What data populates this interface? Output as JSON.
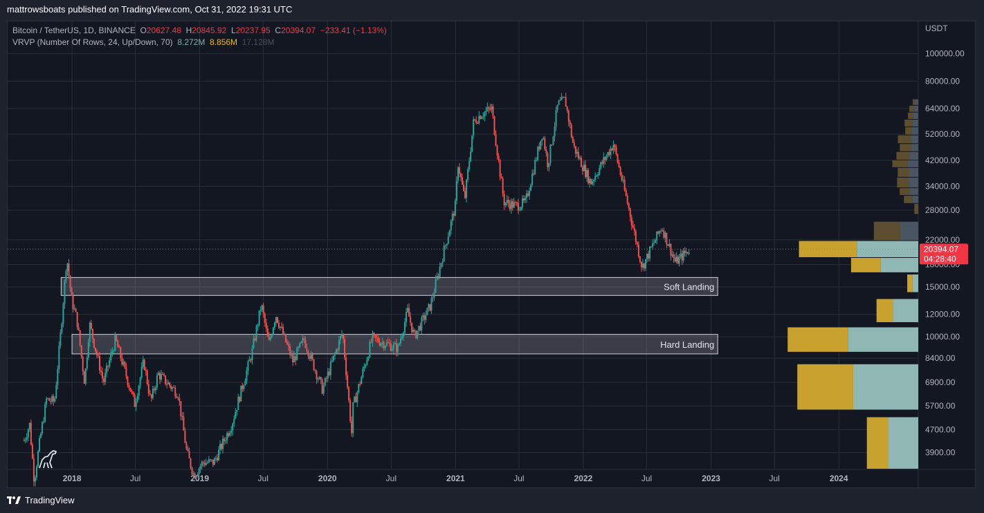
{
  "header": {
    "publisher": "mattrowsboats published on TradingView.com, Oct 31, 2022 19:31 UTC"
  },
  "legend": {
    "symbol": "Bitcoin / TetherUS, 1D, BINANCE",
    "open_label": "O",
    "open": "20627.48",
    "high_label": "H",
    "high": "20845.92",
    "low_label": "L",
    "low": "20237.95",
    "close_label": "C",
    "close": "20394.07",
    "change": "−233.41 (−1.13%)",
    "indicator": "VRVP (Number Of Rows, 24, Up/Down, 70)",
    "vol_up": "8.272M",
    "vol_down": "8.856M",
    "vol_total": "17.128M"
  },
  "footer": {
    "brand": "TradingView"
  },
  "colors": {
    "background": "#131722",
    "grid": "#2a2e39",
    "up": "#26a69a",
    "down": "#ef5350",
    "vp_up": "#8fb8b4",
    "vp_down": "#c9a12f",
    "vp_up_faded": "#4a5563",
    "vp_down_faded": "#5c4e2e",
    "price_line": "#ef5350",
    "price_label": "#f23645"
  },
  "chart_data": {
    "type": "candlestick",
    "symbol": "BTCUSDT",
    "timeframe": "1D",
    "y_scale": "log",
    "currency_label": "USDT",
    "y_range": [
      3400,
      130000
    ],
    "x_range": [
      "2017-07-01",
      "2024-08-15"
    ],
    "y_ticks": [
      "100000.00",
      "80000.00",
      "64000.00",
      "52000.00",
      "42000.00",
      "34000.00",
      "28000.00",
      "22000.00",
      "18000.00",
      "15000.00",
      "12000.00",
      "10000.00",
      "8400.00",
      "6900.00",
      "5700.00",
      "4700.00",
      "3900.00"
    ],
    "x_ticks": [
      {
        "label": "2018",
        "date": "2018-01-01",
        "bold": true
      },
      {
        "label": "Jul",
        "date": "2018-07-01"
      },
      {
        "label": "2019",
        "date": "2019-01-01",
        "bold": true
      },
      {
        "label": "Jul",
        "date": "2019-07-01"
      },
      {
        "label": "2020",
        "date": "2020-01-01",
        "bold": true
      },
      {
        "label": "Jul",
        "date": "2020-07-01"
      },
      {
        "label": "2021",
        "date": "2021-01-01",
        "bold": true
      },
      {
        "label": "Jul",
        "date": "2021-07-01"
      },
      {
        "label": "2022",
        "date": "2022-01-01",
        "bold": true
      },
      {
        "label": "Jul",
        "date": "2022-07-01"
      },
      {
        "label": "2023",
        "date": "2023-01-01",
        "bold": true
      },
      {
        "label": "Jul",
        "date": "2023-07-01"
      },
      {
        "label": "2024",
        "date": "2024-01-01",
        "bold": true
      }
    ],
    "price_path": [
      [
        "2017-08-17",
        4300
      ],
      [
        "2017-09-02",
        4900
      ],
      [
        "2017-09-15",
        3100
      ],
      [
        "2017-10-01",
        4300
      ],
      [
        "2017-10-20",
        6000
      ],
      [
        "2017-11-12",
        5900
      ],
      [
        "2017-12-01",
        10800
      ],
      [
        "2017-12-17",
        19200
      ],
      [
        "2017-12-31",
        13500
      ],
      [
        "2018-01-15",
        11500
      ],
      [
        "2018-02-06",
        6900
      ],
      [
        "2018-02-20",
        11100
      ],
      [
        "2018-04-01",
        6900
      ],
      [
        "2018-05-05",
        9800
      ],
      [
        "2018-06-29",
        5800
      ],
      [
        "2018-07-25",
        8200
      ],
      [
        "2018-08-14",
        5900
      ],
      [
        "2018-09-04",
        7400
      ],
      [
        "2018-10-31",
        6300
      ],
      [
        "2018-11-25",
        3900
      ],
      [
        "2018-12-15",
        3250
      ],
      [
        "2019-01-10",
        3600
      ],
      [
        "2019-02-10",
        3600
      ],
      [
        "2019-04-02",
        4900
      ],
      [
        "2019-05-30",
        8800
      ],
      [
        "2019-06-26",
        13000
      ],
      [
        "2019-07-17",
        9400
      ],
      [
        "2019-08-06",
        12000
      ],
      [
        "2019-09-24",
        8200
      ],
      [
        "2019-10-26",
        9800
      ],
      [
        "2019-12-18",
        6500
      ],
      [
        "2020-02-13",
        10400
      ],
      [
        "2020-03-12",
        4300
      ],
      [
        "2020-03-13",
        5600
      ],
      [
        "2020-05-08",
        9900
      ],
      [
        "2020-07-20",
        9100
      ],
      [
        "2020-08-17",
        12300
      ],
      [
        "2020-09-05",
        10000
      ],
      [
        "2020-10-21",
        12900
      ],
      [
        "2020-11-25",
        19300
      ],
      [
        "2020-12-31",
        29000
      ],
      [
        "2021-01-08",
        41000
      ],
      [
        "2021-01-27",
        30500
      ],
      [
        "2021-02-21",
        57000
      ],
      [
        "2021-03-13",
        61000
      ],
      [
        "2021-04-14",
        64000
      ],
      [
        "2021-05-19",
        30000
      ],
      [
        "2021-06-22",
        29000
      ],
      [
        "2021-07-20",
        29800
      ],
      [
        "2021-09-06",
        52800
      ],
      [
        "2021-09-22",
        40500
      ],
      [
        "2021-10-20",
        66000
      ],
      [
        "2021-11-10",
        68800
      ],
      [
        "2021-12-04",
        47000
      ],
      [
        "2022-01-22",
        35000
      ],
      [
        "2022-03-28",
        48000
      ],
      [
        "2022-05-12",
        28000
      ],
      [
        "2022-06-18",
        17600
      ],
      [
        "2022-08-13",
        24500
      ],
      [
        "2022-09-21",
        18300
      ],
      [
        "2022-10-31",
        20394
      ]
    ],
    "last_price": {
      "value": 20394.07,
      "label": "20394.07",
      "countdown": "04:28:40"
    },
    "zones": [
      {
        "label": "Soft Landing",
        "low": 14000,
        "high": 16200,
        "start": "2017-12-01",
        "end": "2023-01-20"
      },
      {
        "label": "Hard Landing",
        "low": 8700,
        "high": 10200,
        "start": "2018-01-01",
        "end": "2023-01-20"
      }
    ],
    "volume_profile": [
      {
        "low": 3400,
        "high": 5200,
        "up": 0.42,
        "down": 0.32,
        "faded": false
      },
      {
        "low": 5500,
        "high": 8000,
        "up": 0.9,
        "down": 0.85,
        "faded": false
      },
      {
        "low": 8800,
        "high": 10800,
        "up": 0.97,
        "down": 0.92,
        "faded": false
      },
      {
        "low": 11200,
        "high": 13600,
        "up": 0.35,
        "down": 0.25,
        "faded": false
      },
      {
        "low": 14300,
        "high": 16600,
        "up": 0.08,
        "down": 0.08,
        "faded": false
      },
      {
        "low": 16800,
        "high": 19000,
        "up": 0.52,
        "down": 0.45,
        "faded": false
      },
      {
        "low": 19000,
        "high": 21800,
        "up": 0.85,
        "down": 0.88,
        "faded": false
      },
      {
        "low": 21800,
        "high": 25500,
        "up": 0.25,
        "down": 0.4,
        "faded": true
      },
      {
        "low": 27000,
        "high": 29500,
        "up": 0.0,
        "down": 0.06,
        "faded": true
      },
      {
        "low": 29500,
        "high": 31500,
        "up": 0.08,
        "down": 0.13,
        "faded": true
      },
      {
        "low": 31500,
        "high": 33500,
        "up": 0.12,
        "down": 0.15,
        "faded": true
      },
      {
        "low": 33500,
        "high": 36500,
        "up": 0.13,
        "down": 0.18,
        "faded": true
      },
      {
        "low": 36500,
        "high": 39500,
        "up": 0.12,
        "down": 0.18,
        "faded": true
      },
      {
        "low": 39500,
        "high": 42000,
        "up": 0.15,
        "down": 0.23,
        "faded": true
      },
      {
        "low": 42000,
        "high": 45000,
        "up": 0.12,
        "down": 0.2,
        "faded": true
      },
      {
        "low": 45000,
        "high": 48000,
        "up": 0.1,
        "down": 0.17,
        "faded": true
      },
      {
        "low": 48000,
        "high": 51500,
        "up": 0.1,
        "down": 0.2,
        "faded": true
      },
      {
        "low": 51500,
        "high": 55000,
        "up": 0.09,
        "down": 0.1,
        "faded": true
      },
      {
        "low": 55000,
        "high": 58500,
        "up": 0.08,
        "down": 0.12,
        "faded": true
      },
      {
        "low": 58500,
        "high": 62000,
        "up": 0.07,
        "down": 0.08,
        "faded": true
      },
      {
        "low": 62000,
        "high": 65500,
        "up": 0.06,
        "down": 0.07,
        "faded": true
      },
      {
        "low": 65500,
        "high": 69000,
        "up": 0.04,
        "down": 0.04,
        "faded": true
      }
    ]
  }
}
